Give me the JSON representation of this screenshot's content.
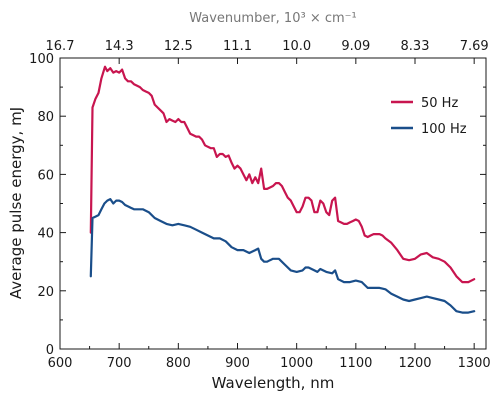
{
  "chart_data": {
    "type": "line",
    "title": "",
    "xlabel": "Wavelength, nm",
    "ylabel": "Average pulse energy, mJ",
    "x2label": "Wavenumber, 10³ × cm⁻¹",
    "xlim": [
      600,
      1320
    ],
    "ylim": [
      0,
      100
    ],
    "xticks": [
      600,
      700,
      800,
      900,
      1000,
      1100,
      1200,
      1300
    ],
    "yticks": [
      0,
      20,
      40,
      60,
      80,
      100
    ],
    "x2ticks": [
      {
        "at": 600,
        "label": "16.7"
      },
      {
        "at": 700,
        "label": "14.3"
      },
      {
        "at": 800,
        "label": "12.5"
      },
      {
        "at": 900,
        "label": "11.1"
      },
      {
        "at": 1000,
        "label": "10.0"
      },
      {
        "at": 1100,
        "label": "9.09"
      },
      {
        "at": 1200,
        "label": "8.33"
      },
      {
        "at": 1300,
        "label": "7.69"
      }
    ],
    "grid": false,
    "legend_position": "top-right",
    "series": [
      {
        "name": "50 Hz",
        "color": "#c8154f",
        "points": [
          [
            652,
            40
          ],
          [
            655,
            83
          ],
          [
            660,
            86
          ],
          [
            665,
            88
          ],
          [
            670,
            93
          ],
          [
            676,
            97
          ],
          [
            680,
            95.5
          ],
          [
            685,
            96.5
          ],
          [
            690,
            95
          ],
          [
            695,
            95.5
          ],
          [
            700,
            95
          ],
          [
            705,
            96
          ],
          [
            710,
            93
          ],
          [
            715,
            92
          ],
          [
            720,
            92
          ],
          [
            725,
            91
          ],
          [
            730,
            90.5
          ],
          [
            735,
            90
          ],
          [
            740,
            89
          ],
          [
            745,
            88.5
          ],
          [
            750,
            88
          ],
          [
            755,
            87
          ],
          [
            760,
            84
          ],
          [
            765,
            83
          ],
          [
            770,
            82
          ],
          [
            775,
            81
          ],
          [
            780,
            78
          ],
          [
            785,
            79
          ],
          [
            790,
            78.5
          ],
          [
            795,
            78
          ],
          [
            800,
            79
          ],
          [
            805,
            78
          ],
          [
            810,
            78
          ],
          [
            815,
            76
          ],
          [
            820,
            74
          ],
          [
            825,
            73.5
          ],
          [
            830,
            73
          ],
          [
            835,
            73
          ],
          [
            840,
            72
          ],
          [
            845,
            70
          ],
          [
            850,
            69.5
          ],
          [
            855,
            69
          ],
          [
            860,
            69
          ],
          [
            865,
            66
          ],
          [
            870,
            67
          ],
          [
            875,
            67
          ],
          [
            880,
            66
          ],
          [
            885,
            66.5
          ],
          [
            890,
            64
          ],
          [
            895,
            62
          ],
          [
            900,
            63
          ],
          [
            905,
            62
          ],
          [
            910,
            60
          ],
          [
            915,
            58
          ],
          [
            920,
            60
          ],
          [
            925,
            57
          ],
          [
            930,
            59
          ],
          [
            935,
            57
          ],
          [
            940,
            62
          ],
          [
            945,
            55
          ],
          [
            950,
            55
          ],
          [
            955,
            55.5
          ],
          [
            960,
            56
          ],
          [
            965,
            57
          ],
          [
            970,
            57
          ],
          [
            975,
            56
          ],
          [
            980,
            54
          ],
          [
            985,
            52
          ],
          [
            990,
            51
          ],
          [
            995,
            49
          ],
          [
            1000,
            47
          ],
          [
            1005,
            47
          ],
          [
            1010,
            49
          ],
          [
            1015,
            52
          ],
          [
            1020,
            52
          ],
          [
            1025,
            51
          ],
          [
            1030,
            47
          ],
          [
            1035,
            47
          ],
          [
            1040,
            51
          ],
          [
            1045,
            50
          ],
          [
            1050,
            47
          ],
          [
            1055,
            46
          ],
          [
            1060,
            51
          ],
          [
            1065,
            52
          ],
          [
            1070,
            44
          ],
          [
            1075,
            43.5
          ],
          [
            1080,
            43
          ],
          [
            1085,
            43
          ],
          [
            1090,
            43.5
          ],
          [
            1095,
            44
          ],
          [
            1100,
            44.5
          ],
          [
            1105,
            44
          ],
          [
            1110,
            42
          ],
          [
            1115,
            39
          ],
          [
            1120,
            38.5
          ],
          [
            1125,
            39
          ],
          [
            1130,
            39.5
          ],
          [
            1140,
            39.5
          ],
          [
            1145,
            39
          ],
          [
            1150,
            38
          ],
          [
            1160,
            36.5
          ],
          [
            1170,
            34
          ],
          [
            1180,
            31
          ],
          [
            1190,
            30.5
          ],
          [
            1200,
            31
          ],
          [
            1210,
            32.5
          ],
          [
            1220,
            33
          ],
          [
            1230,
            31.5
          ],
          [
            1240,
            31
          ],
          [
            1250,
            30
          ],
          [
            1260,
            28
          ],
          [
            1270,
            25
          ],
          [
            1280,
            23
          ],
          [
            1290,
            23
          ],
          [
            1300,
            24
          ]
        ]
      },
      {
        "name": "100 Hz",
        "color": "#1a4e8a",
        "points": [
          [
            652,
            25
          ],
          [
            655,
            45
          ],
          [
            660,
            45.5
          ],
          [
            665,
            46
          ],
          [
            670,
            48
          ],
          [
            675,
            50
          ],
          [
            680,
            51
          ],
          [
            685,
            51.5
          ],
          [
            690,
            50
          ],
          [
            695,
            51
          ],
          [
            700,
            51
          ],
          [
            705,
            50.5
          ],
          [
            710,
            49.5
          ],
          [
            715,
            49
          ],
          [
            720,
            48.5
          ],
          [
            725,
            48
          ],
          [
            730,
            48
          ],
          [
            740,
            48
          ],
          [
            750,
            47
          ],
          [
            760,
            45
          ],
          [
            770,
            44
          ],
          [
            780,
            43
          ],
          [
            790,
            42.5
          ],
          [
            800,
            43
          ],
          [
            810,
            42.5
          ],
          [
            820,
            42
          ],
          [
            830,
            41
          ],
          [
            840,
            40
          ],
          [
            850,
            39
          ],
          [
            860,
            38
          ],
          [
            870,
            38
          ],
          [
            880,
            37
          ],
          [
            890,
            35
          ],
          [
            900,
            34
          ],
          [
            910,
            34
          ],
          [
            920,
            33
          ],
          [
            930,
            34
          ],
          [
            935,
            34.5
          ],
          [
            940,
            31
          ],
          [
            945,
            30
          ],
          [
            950,
            30
          ],
          [
            955,
            30.5
          ],
          [
            960,
            31
          ],
          [
            970,
            31
          ],
          [
            980,
            29
          ],
          [
            990,
            27
          ],
          [
            1000,
            26.5
          ],
          [
            1010,
            27
          ],
          [
            1015,
            28
          ],
          [
            1020,
            28
          ],
          [
            1030,
            27
          ],
          [
            1035,
            26.5
          ],
          [
            1040,
            27.5
          ],
          [
            1050,
            26.5
          ],
          [
            1060,
            26
          ],
          [
            1065,
            27
          ],
          [
            1070,
            24
          ],
          [
            1080,
            23
          ],
          [
            1090,
            23
          ],
          [
            1100,
            23.5
          ],
          [
            1110,
            23
          ],
          [
            1120,
            21
          ],
          [
            1130,
            21
          ],
          [
            1140,
            21
          ],
          [
            1150,
            20.5
          ],
          [
            1160,
            19
          ],
          [
            1170,
            18
          ],
          [
            1180,
            17
          ],
          [
            1190,
            16.5
          ],
          [
            1200,
            17
          ],
          [
            1210,
            17.5
          ],
          [
            1220,
            18
          ],
          [
            1230,
            17.5
          ],
          [
            1240,
            17
          ],
          [
            1250,
            16.5
          ],
          [
            1260,
            15
          ],
          [
            1270,
            13
          ],
          [
            1280,
            12.5
          ],
          [
            1290,
            12.5
          ],
          [
            1300,
            13
          ]
        ]
      }
    ]
  }
}
